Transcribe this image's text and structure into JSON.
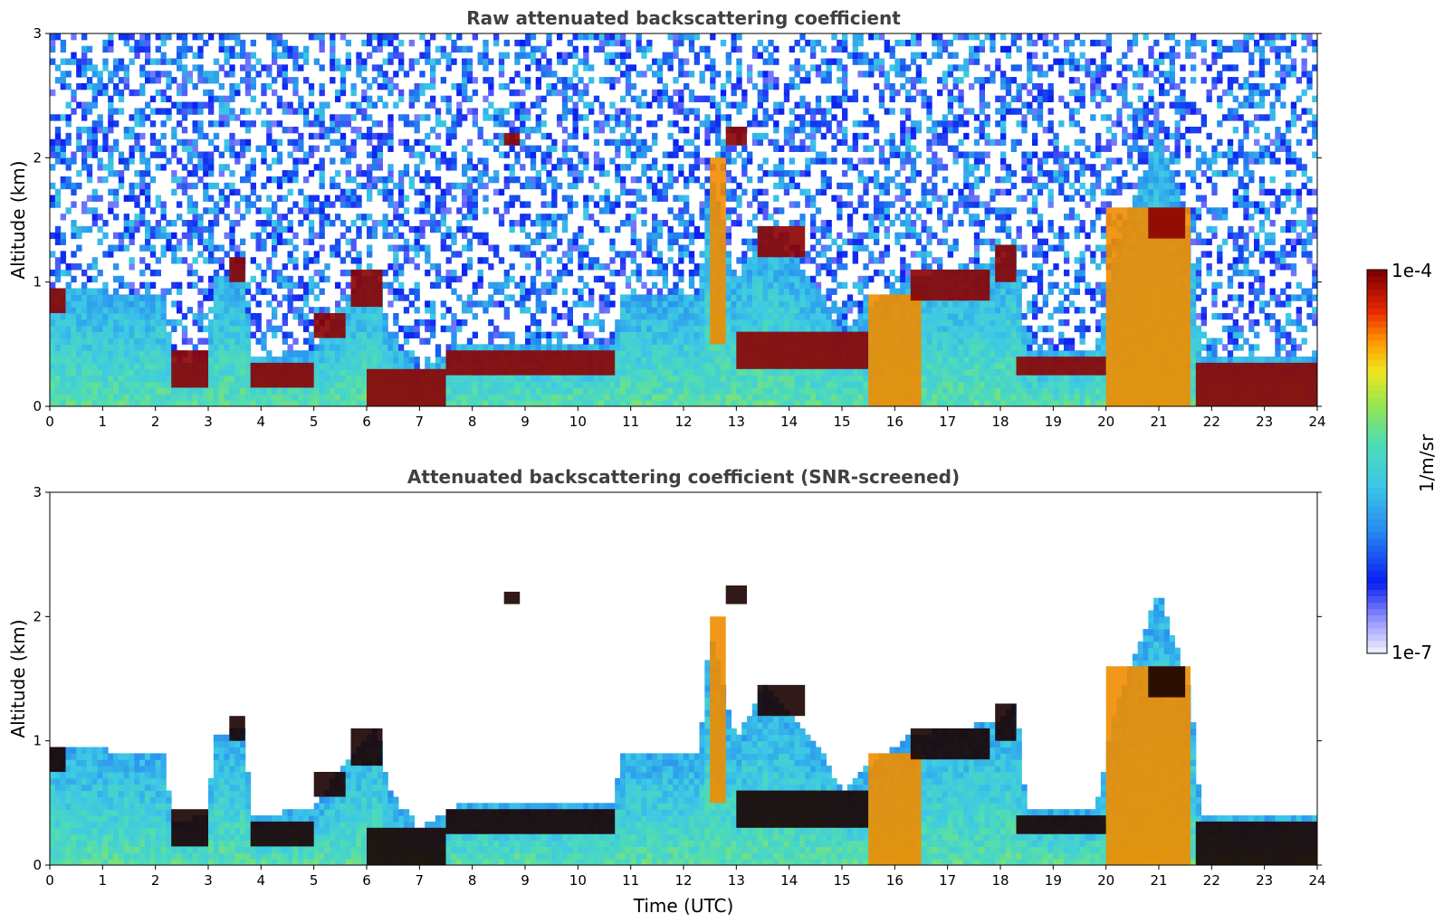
{
  "chart_data": [
    {
      "type": "heatmap",
      "title": "Raw attenuated backscattering coefficient",
      "xlabel": "",
      "ylabel": "Altitude (km)",
      "xlim": [
        0,
        24
      ],
      "ylim": [
        0,
        3
      ],
      "x_ticks": [
        "0",
        "1",
        "2",
        "3",
        "4",
        "5",
        "6",
        "7",
        "8",
        "9",
        "10",
        "11",
        "12",
        "13",
        "14",
        "15",
        "16",
        "17",
        "18",
        "19",
        "20",
        "21",
        "22",
        "23",
        "24"
      ],
      "y_ticks": [
        "0",
        "1",
        "2",
        "3"
      ],
      "screened": false,
      "features": [
        {
          "x": [
            0.0,
            0.3
          ],
          "y": [
            0.75,
            0.95
          ],
          "level": "high"
        },
        {
          "x": [
            2.3,
            3.0
          ],
          "y": [
            0.15,
            0.45
          ],
          "level": "high"
        },
        {
          "x": [
            3.4,
            3.7
          ],
          "y": [
            1.0,
            1.2
          ],
          "level": "high"
        },
        {
          "x": [
            3.8,
            5.0
          ],
          "y": [
            0.15,
            0.35
          ],
          "level": "high"
        },
        {
          "x": [
            5.0,
            5.6
          ],
          "y": [
            0.55,
            0.75
          ],
          "level": "high"
        },
        {
          "x": [
            5.7,
            6.3
          ],
          "y": [
            0.8,
            1.1
          ],
          "level": "high"
        },
        {
          "x": [
            6.0,
            7.5
          ],
          "y": [
            0.0,
            0.3
          ],
          "level": "high"
        },
        {
          "x": [
            7.5,
            10.7
          ],
          "y": [
            0.25,
            0.45
          ],
          "level": "high"
        },
        {
          "x": [
            8.6,
            8.9
          ],
          "y": [
            2.1,
            2.2
          ],
          "level": "high"
        },
        {
          "x": [
            12.5,
            12.8
          ],
          "y": [
            0.5,
            2.0
          ],
          "level": "mid-high"
        },
        {
          "x": [
            12.8,
            13.2
          ],
          "y": [
            2.1,
            2.25
          ],
          "level": "high"
        },
        {
          "x": [
            13.4,
            14.3
          ],
          "y": [
            1.2,
            1.45
          ],
          "level": "high"
        },
        {
          "x": [
            13.0,
            15.5
          ],
          "y": [
            0.3,
            0.6
          ],
          "level": "high"
        },
        {
          "x": [
            15.5,
            16.5
          ],
          "y": [
            0.0,
            0.9
          ],
          "level": "mid-high"
        },
        {
          "x": [
            16.3,
            17.8
          ],
          "y": [
            0.85,
            1.1
          ],
          "level": "high"
        },
        {
          "x": [
            17.9,
            18.3
          ],
          "y": [
            1.0,
            1.3
          ],
          "level": "high"
        },
        {
          "x": [
            18.3,
            20.0
          ],
          "y": [
            0.25,
            0.4
          ],
          "level": "high"
        },
        {
          "x": [
            20.0,
            21.6
          ],
          "y": [
            0.0,
            1.6
          ],
          "level": "mid-high"
        },
        {
          "x": [
            20.8,
            21.5
          ],
          "y": [
            1.35,
            1.6
          ],
          "level": "high"
        },
        {
          "x": [
            21.7,
            24.0
          ],
          "y": [
            0.0,
            0.35
          ],
          "level": "high"
        }
      ]
    },
    {
      "type": "heatmap",
      "title": "Attenuated backscattering coefficient (SNR-screened)",
      "xlabel": "Time (UTC)",
      "ylabel": "Altitude (km)",
      "xlim": [
        0,
        24
      ],
      "ylim": [
        0,
        3
      ],
      "x_ticks": [
        "0",
        "1",
        "2",
        "3",
        "4",
        "5",
        "6",
        "7",
        "8",
        "9",
        "10",
        "11",
        "12",
        "13",
        "14",
        "15",
        "16",
        "17",
        "18",
        "19",
        "20",
        "21",
        "22",
        "23",
        "24"
      ],
      "y_ticks": [
        "0",
        "1",
        "2",
        "3"
      ],
      "screened": true
    }
  ],
  "colorbar": {
    "label": "1/m/sr",
    "min_label": "1e-7",
    "max_label": "1e-4",
    "log_min": -7,
    "log_max": -4
  },
  "colors": {
    "noise_low": "#0a24f0",
    "aerosol": "#3fb6ea",
    "cloud": "#8b0000",
    "title_gray": "#404040"
  }
}
